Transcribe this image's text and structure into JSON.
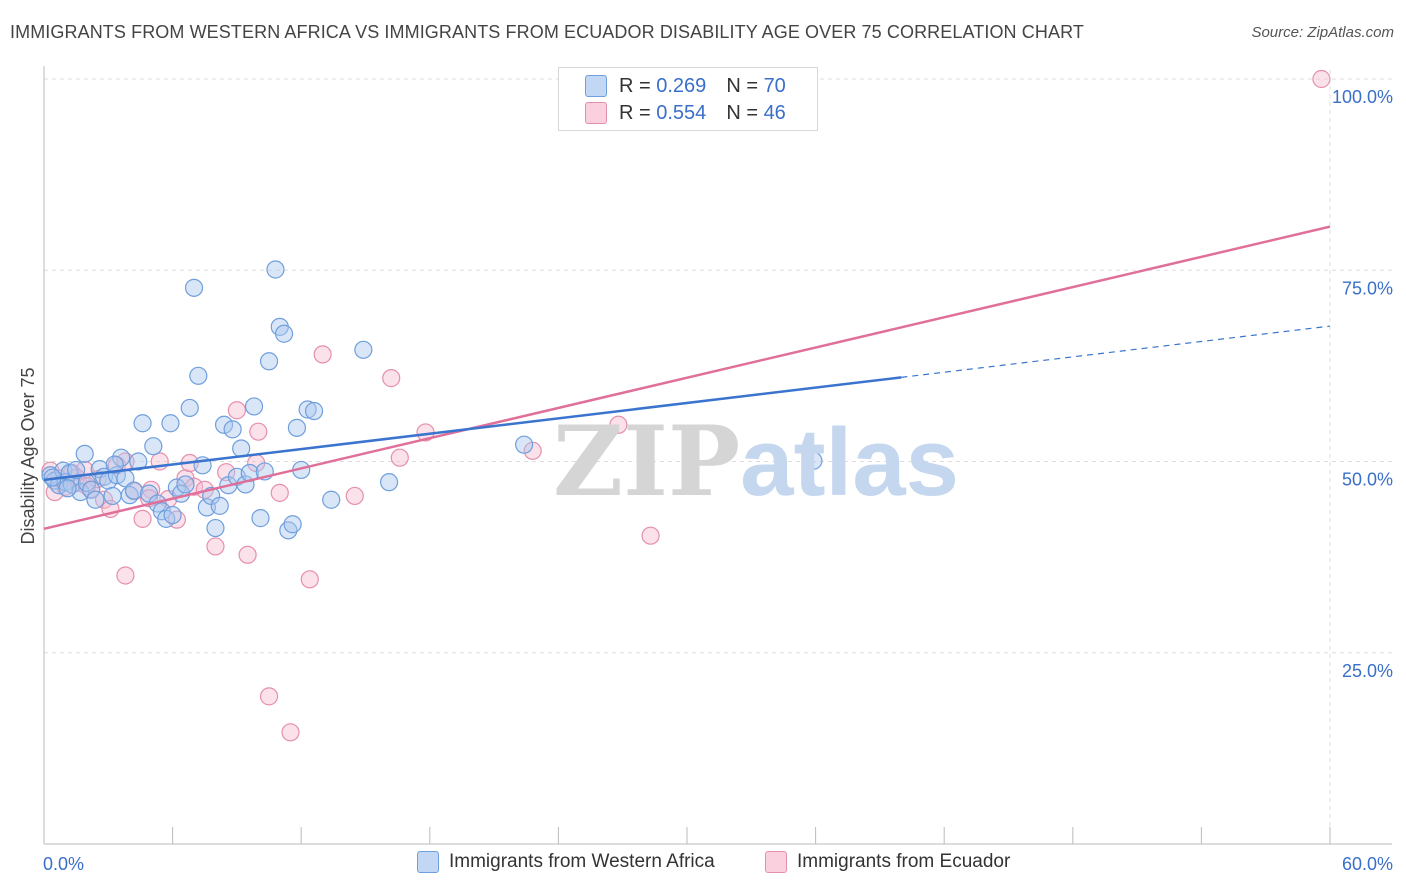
{
  "title": "IMMIGRANTS FROM WESTERN AFRICA VS IMMIGRANTS FROM ECUADOR DISABILITY AGE OVER 75 CORRELATION CHART",
  "source": "Source: ZipAtlas.com",
  "watermark": {
    "zip": "ZIP",
    "atlas": "atlas"
  },
  "legend_top": [
    {
      "r_label": "R = ",
      "r_value": "0.269",
      "n_label": "N = ",
      "n_value": "70"
    },
    {
      "r_label": "R = ",
      "r_value": "0.554",
      "n_label": "N = ",
      "n_value": "46"
    }
  ],
  "legend_bottom": [
    {
      "label": "Immigrants from Western Africa"
    },
    {
      "label": "Immigrants from Ecuador"
    }
  ],
  "colors": {
    "blue_fill": "#aac8f0",
    "blue_stroke": "#6f9fdc",
    "blue_line": "#3a74cf",
    "pink_fill": "#f6bcd0",
    "pink_stroke": "#e58fae",
    "pink_line": "#e0709a",
    "grid": "#dddddd",
    "tick_text": "#3a6fc9"
  },
  "chart_data": {
    "type": "scatter",
    "title": "IMMIGRANTS FROM WESTERN AFRICA VS IMMIGRANTS FROM ECUADOR DISABILITY AGE OVER 75 CORRELATION CHART",
    "xlabel": "",
    "ylabel": "Disability Age Over 75",
    "xlim": [
      0,
      60
    ],
    "ylim": [
      0,
      100
    ],
    "x_tick_labels": [
      "0.0%",
      "60.0%"
    ],
    "x_tick_positions": [
      0,
      6,
      12,
      18,
      24,
      30,
      36,
      42,
      48,
      54,
      60
    ],
    "y_ticks": [
      25,
      50,
      75,
      100
    ],
    "y_tick_labels": [
      "25.0%",
      "50.0%",
      "75.0%",
      "100.0%"
    ],
    "series": [
      {
        "name": "Immigrants from Western Africa",
        "color": "blue",
        "r": 0.269,
        "n": 70,
        "trend": {
          "x0": 0,
          "y0": 47.6,
          "x1": 40,
          "y1": 61.0,
          "dash_to_x": 60,
          "dash_to_y": 67.7
        },
        "points": [
          [
            0.3,
            48.2
          ],
          [
            0.5,
            47.5
          ],
          [
            0.7,
            46.9
          ],
          [
            0.9,
            48.8
          ],
          [
            1.0,
            47.3
          ],
          [
            1.2,
            48.5
          ],
          [
            1.3,
            47.0
          ],
          [
            1.5,
            48.9
          ],
          [
            1.7,
            46.0
          ],
          [
            1.9,
            51.0
          ],
          [
            2.0,
            47.2
          ],
          [
            2.2,
            46.3
          ],
          [
            2.4,
            45.0
          ],
          [
            2.6,
            49.0
          ],
          [
            2.8,
            48.0
          ],
          [
            3.0,
            47.5
          ],
          [
            3.2,
            45.5
          ],
          [
            3.4,
            48.2
          ],
          [
            3.6,
            50.5
          ],
          [
            3.8,
            47.8
          ],
          [
            4.0,
            45.6
          ],
          [
            4.2,
            46.2
          ],
          [
            4.4,
            50.0
          ],
          [
            4.6,
            55.0
          ],
          [
            4.9,
            45.8
          ],
          [
            5.1,
            52.0
          ],
          [
            5.3,
            44.5
          ],
          [
            5.5,
            43.5
          ],
          [
            5.7,
            42.5
          ],
          [
            5.9,
            55.0
          ],
          [
            6.2,
            46.6
          ],
          [
            6.4,
            45.8
          ],
          [
            6.6,
            47.0
          ],
          [
            6.8,
            57.0
          ],
          [
            7.0,
            72.7
          ],
          [
            7.2,
            61.2
          ],
          [
            7.4,
            49.5
          ],
          [
            7.6,
            44.0
          ],
          [
            7.8,
            45.5
          ],
          [
            8.0,
            41.3
          ],
          [
            8.2,
            44.2
          ],
          [
            8.4,
            54.8
          ],
          [
            8.6,
            46.9
          ],
          [
            8.8,
            54.2
          ],
          [
            9.0,
            48.0
          ],
          [
            9.2,
            51.7
          ],
          [
            9.4,
            47.0
          ],
          [
            9.6,
            48.5
          ],
          [
            9.8,
            57.2
          ],
          [
            10.1,
            42.6
          ],
          [
            10.3,
            48.7
          ],
          [
            10.5,
            63.1
          ],
          [
            10.8,
            75.1
          ],
          [
            11.0,
            67.6
          ],
          [
            11.2,
            66.7
          ],
          [
            11.4,
            41.0
          ],
          [
            11.6,
            41.8
          ],
          [
            11.8,
            54.4
          ],
          [
            12.0,
            48.9
          ],
          [
            12.3,
            56.8
          ],
          [
            12.6,
            56.6
          ],
          [
            13.4,
            45.0
          ],
          [
            14.9,
            64.6
          ],
          [
            16.1,
            47.3
          ],
          [
            22.4,
            52.2
          ],
          [
            35.9,
            50.1
          ],
          [
            0.4,
            47.9
          ],
          [
            1.1,
            46.5
          ],
          [
            3.3,
            49.6
          ],
          [
            6.0,
            43.0
          ]
        ]
      },
      {
        "name": "Immigrants from Ecuador",
        "color": "pink",
        "r": 0.554,
        "n": 46,
        "trend": {
          "x0": 0,
          "y0": 41.2,
          "x1": 60,
          "y1": 80.7
        },
        "points": [
          [
            0.3,
            48.8
          ],
          [
            0.5,
            46.0
          ],
          [
            0.7,
            47.8
          ],
          [
            1.0,
            46.7
          ],
          [
            1.3,
            48.5
          ],
          [
            1.6,
            47.2
          ],
          [
            1.9,
            48.9
          ],
          [
            2.2,
            46.4
          ],
          [
            2.5,
            47.7
          ],
          [
            2.8,
            45.0
          ],
          [
            3.1,
            43.8
          ],
          [
            3.4,
            49.5
          ],
          [
            3.8,
            50.0
          ],
          [
            4.2,
            46.1
          ],
          [
            4.6,
            42.5
          ],
          [
            5.0,
            46.3
          ],
          [
            5.4,
            50.0
          ],
          [
            5.8,
            45.1
          ],
          [
            6.2,
            42.4
          ],
          [
            6.6,
            47.8
          ],
          [
            7.0,
            46.7
          ],
          [
            7.5,
            46.3
          ],
          [
            8.0,
            38.9
          ],
          [
            8.5,
            48.6
          ],
          [
            9.0,
            56.7
          ],
          [
            9.5,
            37.8
          ],
          [
            10.0,
            53.9
          ],
          [
            10.5,
            19.3
          ],
          [
            11.0,
            45.9
          ],
          [
            11.5,
            14.6
          ],
          [
            12.4,
            34.6
          ],
          [
            13.0,
            64.0
          ],
          [
            14.5,
            45.5
          ],
          [
            16.2,
            60.9
          ],
          [
            16.6,
            50.5
          ],
          [
            17.8,
            53.8
          ],
          [
            22.8,
            51.4
          ],
          [
            26.8,
            54.8
          ],
          [
            28.3,
            40.3
          ],
          [
            59.6,
            100.0
          ],
          [
            3.8,
            35.1
          ],
          [
            9.9,
            49.8
          ],
          [
            1.5,
            47.9
          ],
          [
            4.9,
            45.2
          ],
          [
            6.8,
            49.8
          ],
          [
            2.0,
            46.8
          ]
        ]
      }
    ]
  }
}
